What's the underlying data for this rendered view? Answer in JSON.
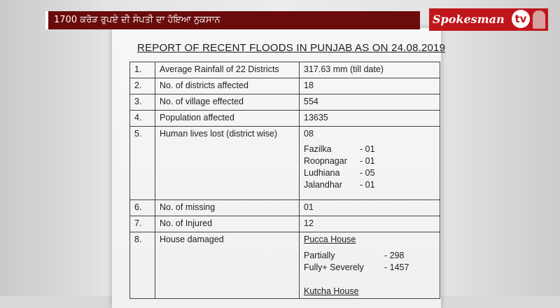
{
  "banner": {
    "text": "1700 ਕਰੋੜ ਰੁਪਏ ਦੀ ਸੰਪਤੀ ਦਾ ਹੋਇਆ ਨੁਕਸਾਨ"
  },
  "logo": {
    "name": "Spokesman",
    "tv": "tv"
  },
  "document": {
    "title": "REPORT OF RECENT FLOODS IN PUNJAB AS ON 24.08.2019",
    "rows": [
      {
        "num": "1.",
        "label": "Average Rainfall of 22 Districts",
        "value": "317.63 mm (till date)"
      },
      {
        "num": "2.",
        "label": "No. of districts affected",
        "value": "18"
      },
      {
        "num": "3.",
        "label": "No. of village effected",
        "value": "554"
      },
      {
        "num": "4.",
        "label": "Population affected",
        "value": "13635"
      },
      {
        "num": "5.",
        "label": "Human lives lost (district wise)",
        "value": "08",
        "sub": [
          {
            "name": "Fazilka",
            "val": "- 01"
          },
          {
            "name": "Roopnagar",
            "val": "- 01"
          },
          {
            "name": "Ludhiana",
            "val": "- 05"
          },
          {
            "name": "Jalandhar",
            "val": "- 01"
          }
        ]
      },
      {
        "num": "6.",
        "label": "No. of missing",
        "value": "01"
      },
      {
        "num": "7.",
        "label": "No. of Injured",
        "value": "12"
      },
      {
        "num": "8.",
        "label": "House damaged",
        "value": "Pucca House",
        "sub": [
          {
            "name": "Partially",
            "val": "- 298"
          },
          {
            "name": "Fully+ Severely",
            "val": "- 1457"
          }
        ],
        "extra": "Kutcha House"
      }
    ]
  }
}
